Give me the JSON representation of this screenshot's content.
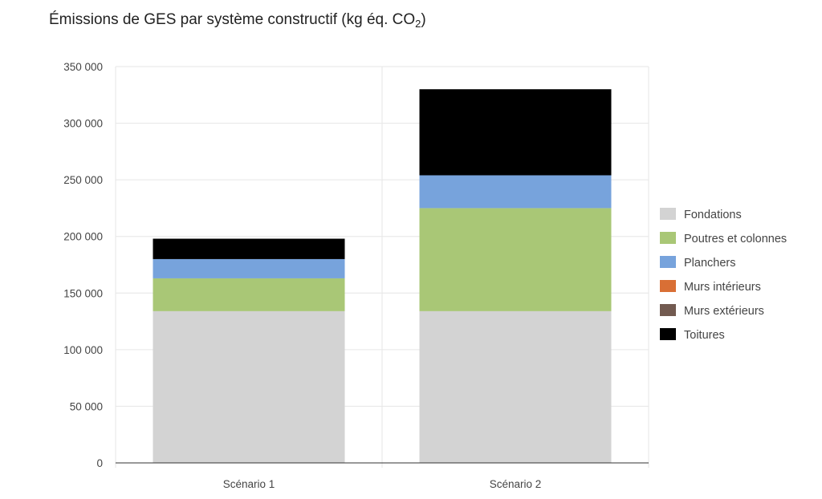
{
  "chart_data": {
    "type": "bar",
    "stacked": true,
    "title": {
      "main": "Émissions de GES par système constructif (kg éq. CO",
      "subscript": "2",
      "suffix": ")"
    },
    "categories": [
      "Scénario 1",
      "Scénario 2"
    ],
    "y_axis": {
      "min": 0,
      "max": 350000,
      "ticks": [
        0,
        50000,
        100000,
        150000,
        200000,
        250000,
        300000,
        350000
      ],
      "tick_labels": [
        "0",
        "50 000",
        "100 000",
        "150 000",
        "200 000",
        "250 000",
        "300 000",
        "350 000"
      ]
    },
    "grid": true,
    "legend_position": "right",
    "series": [
      {
        "name": "Fondations",
        "color": "#d3d3d3",
        "values": [
          134000,
          134000
        ]
      },
      {
        "name": "Poutres et colonnes",
        "color": "#a9c776",
        "values": [
          29000,
          91000
        ]
      },
      {
        "name": "Planchers",
        "color": "#77a3dc",
        "values": [
          17000,
          29000
        ]
      },
      {
        "name": "Murs intérieurs",
        "color": "#d96f35",
        "values": [
          0,
          0
        ]
      },
      {
        "name": "Murs extérieurs",
        "color": "#725a50",
        "values": [
          0,
          0
        ]
      },
      {
        "name": "Toitures",
        "color": "#000000",
        "values": [
          18000,
          76000
        ]
      }
    ]
  }
}
